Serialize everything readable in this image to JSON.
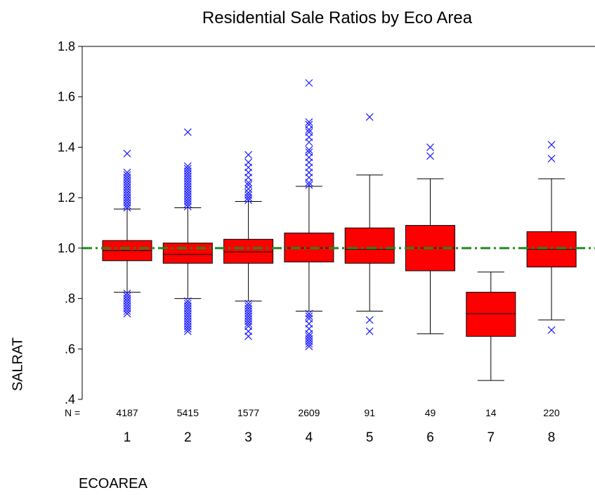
{
  "chart_data": {
    "type": "box",
    "title": "Residential Sale Ratios by Eco Area",
    "xlabel": "ECOAREA",
    "ylabel": "SALRAT",
    "ylim": [
      0.4,
      1.8
    ],
    "yticks": [
      {
        "value": 0.4,
        "label": ".4"
      },
      {
        "value": 0.6,
        "label": ".6"
      },
      {
        "value": 0.8,
        "label": ".8"
      },
      {
        "value": 1.0,
        "label": "1.0"
      },
      {
        "value": 1.2,
        "label": "1.2"
      },
      {
        "value": 1.4,
        "label": "1.4"
      },
      {
        "value": 1.6,
        "label": "1.6"
      },
      {
        "value": 1.8,
        "label": "1.8"
      }
    ],
    "n_label": "N =",
    "reference_line": {
      "y": 1.0,
      "color": "#1f8a1f",
      "style": "dash-dot"
    },
    "box_color": "#ff0000",
    "outlier_color": "#1a1aff",
    "categories": [
      "1",
      "2",
      "3",
      "4",
      "5",
      "6",
      "7",
      "8"
    ],
    "n": [
      "4187",
      "5415",
      "1577",
      "2609",
      "91",
      "49",
      "14",
      "220"
    ],
    "boxes": [
      {
        "whisker_low": 0.825,
        "q1": 0.95,
        "median": 0.99,
        "q3": 1.03,
        "whisker_high": 1.155,
        "outliers": [
          0.74,
          0.75,
          0.76,
          0.77,
          0.78,
          0.79,
          0.8,
          0.81,
          0.82,
          1.16,
          1.17,
          1.18,
          1.19,
          1.2,
          1.21,
          1.22,
          1.23,
          1.24,
          1.25,
          1.26,
          1.27,
          1.28,
          1.29,
          1.3,
          1.375
        ]
      },
      {
        "whisker_low": 0.8,
        "q1": 0.94,
        "median": 0.975,
        "q3": 1.02,
        "whisker_high": 1.16,
        "outliers": [
          0.67,
          0.68,
          0.69,
          0.7,
          0.71,
          0.72,
          0.73,
          0.74,
          0.75,
          0.76,
          0.77,
          0.78,
          0.79,
          1.165,
          1.175,
          1.185,
          1.195,
          1.205,
          1.215,
          1.225,
          1.235,
          1.245,
          1.255,
          1.265,
          1.275,
          1.285,
          1.295,
          1.305,
          1.315,
          1.325,
          1.46
        ]
      },
      {
        "whisker_low": 0.79,
        "q1": 0.94,
        "median": 0.985,
        "q3": 1.035,
        "whisker_high": 1.185,
        "outliers": [
          0.65,
          0.67,
          0.69,
          0.7,
          0.71,
          0.72,
          0.73,
          0.74,
          0.75,
          0.76,
          0.77,
          0.78,
          1.19,
          1.2,
          1.21,
          1.22,
          1.235,
          1.25,
          1.26,
          1.28,
          1.3,
          1.32,
          1.34,
          1.37
        ]
      },
      {
        "whisker_low": 0.75,
        "q1": 0.945,
        "median": 1.0,
        "q3": 1.06,
        "whisker_high": 1.245,
        "outliers": [
          0.61,
          0.62,
          0.63,
          0.64,
          0.65,
          0.66,
          0.68,
          0.7,
          0.72,
          0.73,
          0.74,
          1.25,
          1.26,
          1.28,
          1.3,
          1.32,
          1.34,
          1.36,
          1.38,
          1.39,
          1.42,
          1.44,
          1.46,
          1.47,
          1.49,
          1.5,
          1.655
        ]
      },
      {
        "whisker_low": 0.75,
        "q1": 0.94,
        "median": 0.995,
        "q3": 1.08,
        "whisker_high": 1.29,
        "outliers": [
          0.67,
          0.715,
          1.52
        ]
      },
      {
        "whisker_low": 0.66,
        "q1": 0.91,
        "median": 1.0,
        "q3": 1.09,
        "whisker_high": 1.275,
        "outliers": [
          1.365,
          1.4
        ]
      },
      {
        "whisker_low": 0.475,
        "q1": 0.65,
        "median": 0.74,
        "q3": 0.825,
        "whisker_high": 0.905,
        "outliers": []
      },
      {
        "whisker_low": 0.715,
        "q1": 0.925,
        "median": 0.995,
        "q3": 1.065,
        "whisker_high": 1.275,
        "outliers": [
          0.675,
          1.355,
          1.41
        ]
      }
    ]
  }
}
